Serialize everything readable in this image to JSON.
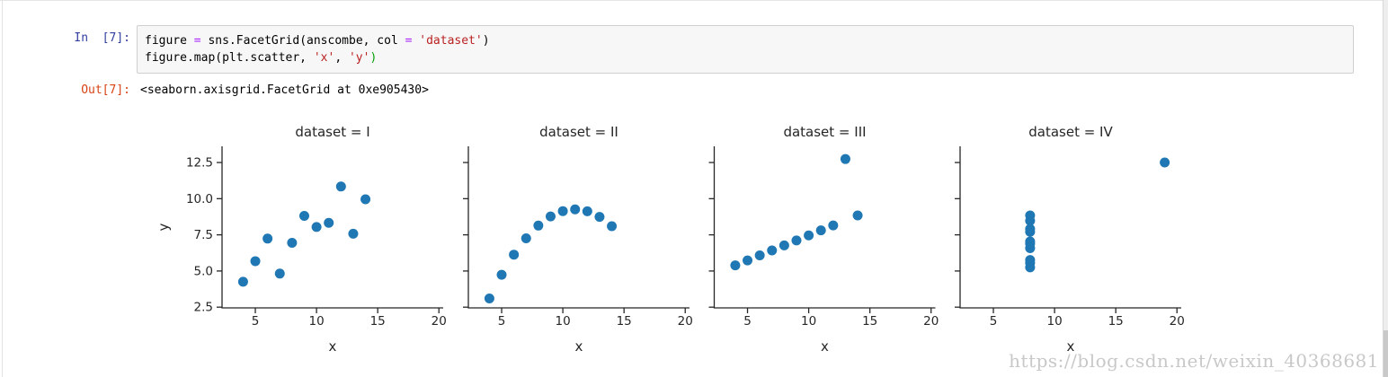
{
  "notebook": {
    "input_prompt": "In  [7]:",
    "output_prompt": "Out[7]:",
    "code_lines": [
      [
        {
          "t": "figure ",
          "c": "plain"
        },
        {
          "t": "= ",
          "c": "op"
        },
        {
          "t": "sns.FacetGrid(anscombe, col ",
          "c": "plain"
        },
        {
          "t": "= ",
          "c": "op"
        },
        {
          "t": "'dataset'",
          "c": "str"
        },
        {
          "t": ")",
          "c": "plain"
        }
      ],
      [
        {
          "t": "figure.map(plt.scatter, ",
          "c": "plain"
        },
        {
          "t": "'x'",
          "c": "str"
        },
        {
          "t": ", ",
          "c": "plain"
        },
        {
          "t": "'y'",
          "c": "str"
        },
        {
          "t": ")",
          "c": "bracket"
        }
      ]
    ],
    "output_text": "<seaborn.axisgrid.FacetGrid at 0xe905430>"
  },
  "watermark": "https://blog.csdn.net/weixin_40368681",
  "colors": {
    "marker": "#1f77b4",
    "input_prompt": "#303F9F",
    "output_prompt": "#D84315",
    "operator": "#AA22FF",
    "string": "#BA2121",
    "bracket": "#00A000",
    "axis_text": "#262626",
    "spine": "#262626"
  },
  "chart_data": {
    "type": "scatter",
    "facet_titles": [
      "dataset = I",
      "dataset = II",
      "dataset = III",
      "dataset = IV"
    ],
    "xlabel": "x",
    "ylabel": "y",
    "xlim": [
      2.28,
      20.35
    ],
    "ylim": [
      2.45,
      13.62
    ],
    "xticks": [
      5,
      10,
      15,
      20
    ],
    "xtick_labels": [
      "5",
      "10",
      "15",
      "20"
    ],
    "yticks": [
      2.5,
      5.0,
      7.5,
      10.0,
      12.5
    ],
    "ytick_labels": [
      "2.5",
      "5.0",
      "7.5",
      "10.0",
      "12.5"
    ],
    "grid": false,
    "legend": "none",
    "series": [
      {
        "name": "I",
        "x": [
          10,
          8,
          13,
          9,
          11,
          14,
          6,
          4,
          12,
          7,
          5
        ],
        "y": [
          8.04,
          6.95,
          7.58,
          8.81,
          8.33,
          9.96,
          7.24,
          4.26,
          10.84,
          4.82,
          5.68
        ]
      },
      {
        "name": "II",
        "x": [
          10,
          8,
          13,
          9,
          11,
          14,
          6,
          4,
          12,
          7,
          5
        ],
        "y": [
          9.14,
          8.14,
          8.74,
          8.77,
          9.26,
          8.1,
          6.13,
          3.1,
          9.13,
          7.26,
          4.74
        ]
      },
      {
        "name": "III",
        "x": [
          10,
          8,
          13,
          9,
          11,
          14,
          6,
          4,
          12,
          7,
          5
        ],
        "y": [
          7.46,
          6.77,
          12.74,
          7.11,
          7.81,
          8.84,
          6.08,
          5.39,
          8.15,
          6.42,
          5.73
        ]
      },
      {
        "name": "IV",
        "x": [
          8,
          8,
          8,
          8,
          8,
          8,
          8,
          19,
          8,
          8,
          8
        ],
        "y": [
          6.58,
          5.76,
          7.71,
          8.84,
          8.47,
          7.04,
          5.25,
          12.5,
          5.56,
          7.91,
          6.89
        ]
      }
    ]
  }
}
